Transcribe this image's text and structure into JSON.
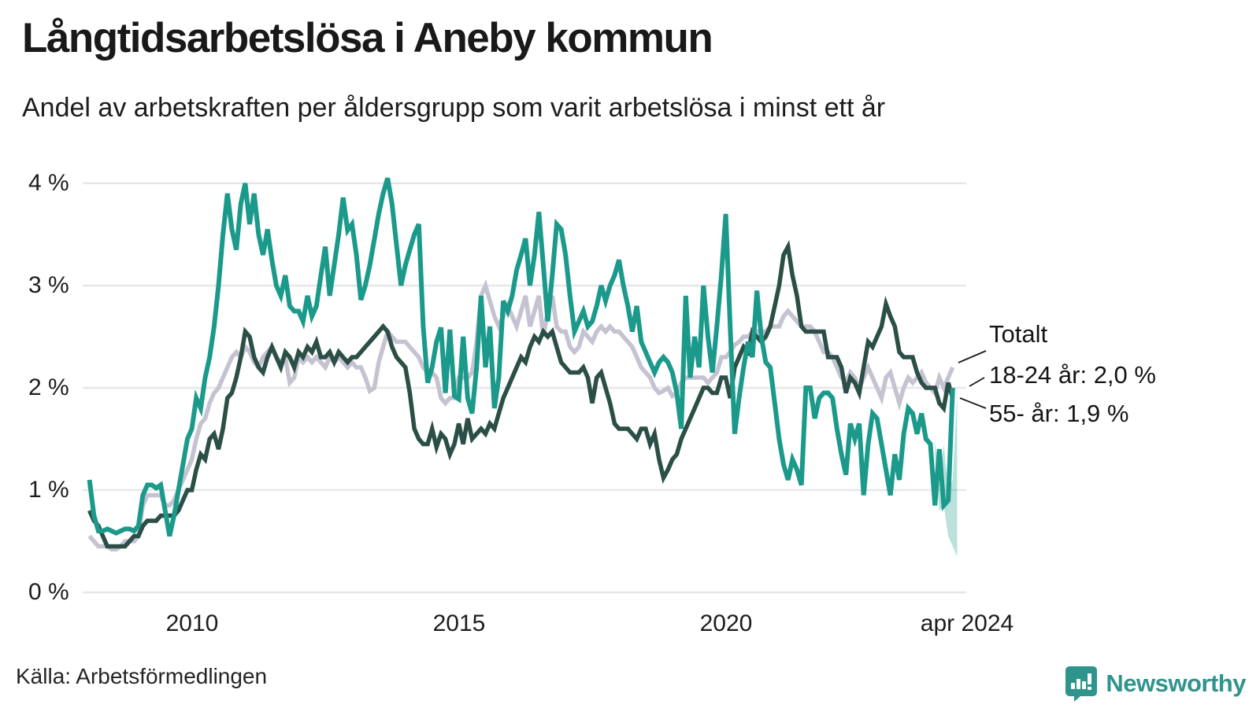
{
  "header": {
    "title": "Långtidsarbetslösa i Aneby kommun",
    "subtitle": "Andel av arbetskraften per åldersgrupp som varit arbetslösa i minst ett år"
  },
  "footer": {
    "source": "Källa: Arbetsförmedlingen",
    "logo_text": "Newsworthy"
  },
  "colors": {
    "total": "#c5c3d1",
    "young": "#1b9a8b",
    "old": "#2b4f46",
    "band": "rgba(27,154,139,0.30)",
    "grid": "#e7e7ea",
    "leader": "#1a1a1a",
    "logo": "#2f948c"
  },
  "annotations": {
    "total": "Totalt",
    "young": "18-24 år: 2,0 %",
    "old": "55- år: 1,9 %"
  },
  "chart_data": {
    "type": "line",
    "title": "Långtidsarbetslösa i Aneby kommun",
    "subtitle": "Andel av arbetskraften per åldersgrupp som varit arbetslösa i minst ett år",
    "frequency": "monthly",
    "x_start": "2008-02",
    "x_end": "2024-04",
    "ylim": [
      0,
      4.3
    ],
    "grid": true,
    "legend_position": "right-annotations",
    "y_ticks": {
      "values": [
        0,
        1,
        2,
        3,
        4
      ],
      "labels": [
        "0 %",
        "1 %",
        "2 %",
        "3 %",
        "4 %"
      ]
    },
    "x_ticks": {
      "values": [
        2010,
        2015,
        2020,
        2024.25
      ],
      "labels": [
        "2010",
        "2015",
        "2020",
        "apr 2024"
      ]
    },
    "series": [
      {
        "name": "Totalt",
        "color": "#c5c3d1",
        "last_value": 2.2,
        "values": [
          0.55,
          0.5,
          0.45,
          0.45,
          0.45,
          0.42,
          0.42,
          0.45,
          0.5,
          0.5,
          0.5,
          0.55,
          0.85,
          0.95,
          0.95,
          0.95,
          0.95,
          0.85,
          0.85,
          0.9,
          1.0,
          1.1,
          1.2,
          1.3,
          1.5,
          1.65,
          1.7,
          1.85,
          1.95,
          2.0,
          2.1,
          2.2,
          2.3,
          2.35,
          2.3,
          2.4,
          2.35,
          2.25,
          2.2,
          2.3,
          2.35,
          2.4,
          2.3,
          2.25,
          2.3,
          2.05,
          2.1,
          2.3,
          2.25,
          2.3,
          2.25,
          2.3,
          2.25,
          2.2,
          2.3,
          2.25,
          2.3,
          2.25,
          2.2,
          2.25,
          2.2,
          2.2,
          2.1,
          1.97,
          2.0,
          2.25,
          2.4,
          2.55,
          2.5,
          2.45,
          2.45,
          2.45,
          2.4,
          2.35,
          2.3,
          2.2,
          2.15,
          2.15,
          2.1,
          1.9,
          1.85,
          1.9,
          1.9,
          2.1,
          2.1,
          2.1,
          2.15,
          2.45,
          2.9,
          3.0,
          2.85,
          2.7,
          2.6,
          2.7,
          2.8,
          2.7,
          2.6,
          2.75,
          2.9,
          2.6,
          2.75,
          2.9,
          2.5,
          2.75,
          2.9,
          2.6,
          2.55,
          2.55,
          2.4,
          2.35,
          2.4,
          2.55,
          2.5,
          2.45,
          2.55,
          2.6,
          2.55,
          2.6,
          2.55,
          2.55,
          2.5,
          2.45,
          2.4,
          2.3,
          2.2,
          2.15,
          2.1,
          2.0,
          1.95,
          1.97,
          2.0,
          1.92,
          1.95,
          2.05,
          2.1,
          2.1,
          2.1,
          2.1,
          2.1,
          2.05,
          2.1,
          2.15,
          2.3,
          2.3,
          2.35,
          2.42,
          2.45,
          2.5,
          2.5,
          2.55,
          2.55,
          2.55,
          2.55,
          2.6,
          2.6,
          2.6,
          2.7,
          2.75,
          2.7,
          2.65,
          2.6,
          2.6,
          2.6,
          2.55,
          2.45,
          2.35,
          2.35,
          2.3,
          2.2,
          2.1,
          2.05,
          2.15,
          2.1,
          2.0,
          2.1,
          2.2,
          2.1,
          2.0,
          1.9,
          2.1,
          2.15,
          2.0,
          1.85,
          2.0,
          2.1,
          2.05,
          2.1,
          2.15,
          2.05,
          2.0,
          1.95,
          2.1,
          2.0,
          2.1,
          2.2
        ]
      },
      {
        "name": "55- år",
        "color": "#2b4f46",
        "last_value": 1.9,
        "values": [
          0.8,
          0.7,
          0.65,
          0.55,
          0.45,
          0.45,
          0.45,
          0.45,
          0.45,
          0.5,
          0.55,
          0.55,
          0.65,
          0.7,
          0.7,
          0.7,
          0.75,
          0.75,
          0.75,
          0.75,
          0.8,
          0.9,
          1.0,
          1.0,
          1.2,
          1.35,
          1.3,
          1.5,
          1.55,
          1.4,
          1.6,
          1.9,
          1.95,
          2.1,
          2.3,
          2.55,
          2.5,
          2.3,
          2.2,
          2.15,
          2.3,
          2.4,
          2.3,
          2.2,
          2.35,
          2.3,
          2.2,
          2.35,
          2.3,
          2.4,
          2.35,
          2.45,
          2.3,
          2.3,
          2.35,
          2.25,
          2.35,
          2.3,
          2.25,
          2.3,
          2.3,
          2.35,
          2.4,
          2.45,
          2.5,
          2.55,
          2.6,
          2.55,
          2.4,
          2.3,
          2.25,
          2.2,
          1.95,
          1.6,
          1.5,
          1.45,
          1.45,
          1.6,
          1.42,
          1.55,
          1.5,
          1.35,
          1.45,
          1.65,
          1.45,
          1.7,
          1.5,
          1.55,
          1.6,
          1.55,
          1.65,
          1.6,
          1.75,
          1.9,
          2.0,
          2.1,
          2.2,
          2.3,
          2.25,
          2.4,
          2.5,
          2.45,
          2.55,
          2.5,
          2.55,
          2.4,
          2.25,
          2.2,
          2.15,
          2.15,
          2.15,
          2.2,
          2.1,
          1.85,
          2.1,
          2.15,
          2.0,
          1.85,
          1.65,
          1.6,
          1.6,
          1.6,
          1.55,
          1.5,
          1.6,
          1.6,
          1.45,
          1.55,
          1.3,
          1.12,
          1.2,
          1.3,
          1.35,
          1.5,
          1.6,
          1.7,
          1.8,
          1.9,
          2.0,
          2.0,
          1.95,
          1.95,
          2.1,
          2.1,
          1.9,
          2.2,
          2.3,
          2.4,
          2.35,
          2.55,
          2.5,
          2.45,
          2.5,
          2.6,
          2.8,
          3.0,
          3.3,
          3.38,
          3.1,
          2.9,
          2.6,
          2.55,
          2.55,
          2.55,
          2.55,
          2.55,
          2.3,
          2.3,
          2.3,
          2.2,
          1.95,
          2.1,
          2.05,
          1.95,
          2.2,
          2.45,
          2.4,
          2.5,
          2.6,
          2.82,
          2.7,
          2.6,
          2.35,
          2.3,
          2.3,
          2.3,
          2.15,
          2.05,
          2.0,
          2.0,
          2.0,
          1.85,
          1.8,
          2.05,
          1.9
        ]
      },
      {
        "name": "18-24 år",
        "color": "#1b9a8b",
        "last_value": 2.0,
        "values": [
          1.1,
          0.75,
          0.6,
          0.6,
          0.62,
          0.6,
          0.58,
          0.6,
          0.62,
          0.62,
          0.6,
          0.65,
          0.95,
          1.05,
          1.05,
          1.02,
          1.05,
          0.8,
          0.55,
          0.75,
          1.0,
          1.25,
          1.5,
          1.6,
          1.9,
          1.8,
          2.1,
          2.3,
          2.6,
          3.0,
          3.5,
          3.9,
          3.55,
          3.35,
          3.8,
          4.0,
          3.6,
          3.9,
          3.5,
          3.3,
          3.55,
          3.25,
          3.0,
          2.9,
          3.1,
          2.8,
          2.75,
          2.75,
          2.65,
          2.9,
          2.7,
          2.8,
          3.1,
          3.38,
          2.9,
          3.2,
          3.5,
          3.86,
          3.54,
          3.6,
          3.3,
          2.86,
          3.0,
          3.2,
          3.45,
          3.7,
          3.9,
          4.05,
          3.8,
          3.4,
          3.0,
          3.2,
          3.35,
          3.5,
          3.6,
          2.6,
          2.05,
          2.2,
          2.45,
          2.59,
          1.95,
          2.57,
          1.92,
          1.89,
          2.5,
          1.9,
          1.75,
          2.2,
          2.9,
          2.2,
          2.6,
          1.8,
          2.1,
          2.85,
          2.75,
          2.9,
          3.15,
          3.3,
          3.46,
          3.0,
          3.3,
          3.72,
          3.2,
          2.65,
          3.1,
          3.6,
          3.55,
          3.3,
          2.9,
          2.55,
          2.65,
          2.75,
          2.6,
          2.65,
          2.8,
          3.0,
          2.85,
          3.0,
          3.1,
          3.25,
          3.0,
          2.8,
          2.55,
          2.8,
          2.45,
          2.35,
          2.25,
          2.15,
          2.25,
          2.3,
          2.25,
          2.15,
          1.95,
          1.6,
          2.9,
          2.1,
          2.5,
          2.2,
          3.0,
          2.5,
          2.15,
          2.6,
          3.1,
          3.7,
          2.6,
          1.55,
          1.9,
          2.2,
          2.45,
          2.3,
          2.95,
          2.5,
          2.25,
          2.2,
          1.85,
          1.5,
          1.25,
          1.1,
          1.3,
          1.2,
          1.05,
          2.0,
          2.0,
          1.7,
          1.9,
          1.95,
          1.95,
          1.9,
          1.6,
          1.35,
          1.15,
          1.65,
          1.5,
          1.65,
          0.95,
          1.45,
          1.75,
          1.7,
          1.45,
          1.2,
          0.95,
          1.35,
          1.1,
          1.55,
          1.8,
          1.75,
          1.55,
          1.75,
          1.5,
          1.45,
          0.85,
          1.4,
          0.85,
          0.9,
          2.0
        ]
      }
    ],
    "uncertainty_band": {
      "series": "18-24 år",
      "months": [
        "2023-11",
        "2023-12",
        "2024-01",
        "2024-02",
        "2024-03",
        "2024-04"
      ],
      "lower": [
        1.35,
        0.8,
        0.85,
        0.55,
        0.45,
        0.35
      ],
      "upper": [
        1.5,
        1.05,
        1.45,
        1.0,
        1.1,
        1.95
      ]
    }
  }
}
